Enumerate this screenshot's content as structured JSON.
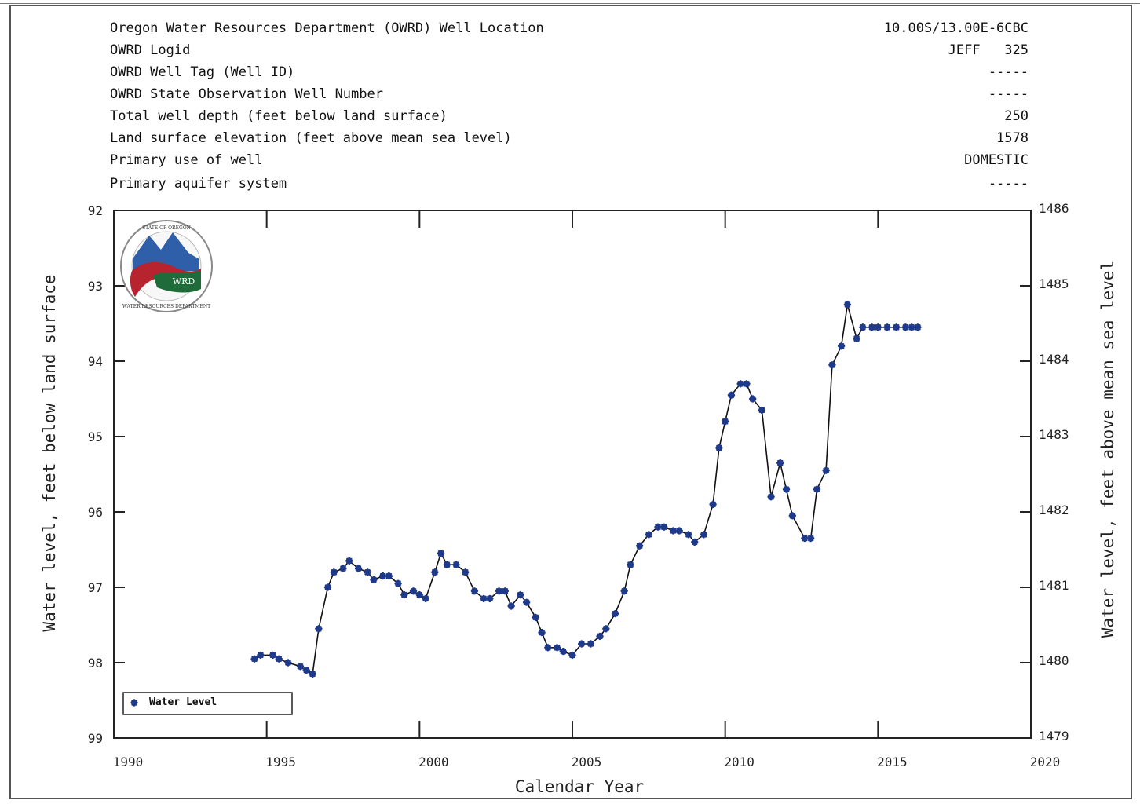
{
  "info_rows": [
    {
      "label": "Oregon Water Resources Department (OWRD) Well Location",
      "value": "10.00S/13.00E-6CBC"
    },
    {
      "label": "OWRD Logid",
      "value": "JEFF   325"
    },
    {
      "label": "OWRD Well Tag (Well ID)",
      "value": "-----"
    },
    {
      "label": "OWRD State Observation Well Number",
      "value": "-----"
    },
    {
      "label": "Total well depth (feet below land surface)",
      "value": "250"
    },
    {
      "label": "Land surface elevation (feet above mean sea level)",
      "value": "1578"
    },
    {
      "label": "Primary use of well",
      "value": "DOMESTIC"
    },
    {
      "label": "Primary aquifer system",
      "value": "-----"
    }
  ],
  "logo": {
    "text_top": "STATE OF OREGON",
    "text_bottom": "WATER RESOURCES DEPARTMENT",
    "abbr": "WRD"
  },
  "colors": {
    "series": "#1f3a8a",
    "line": "#111111",
    "axis": "#222222",
    "logo_blue": "#2f5fa8",
    "logo_red": "#b7232f",
    "logo_green": "#1f6b3a"
  },
  "chart_data": {
    "type": "line",
    "title": "",
    "xlabel": "Calendar Year",
    "ylabel": "Water level, feet below land surface",
    "ylabel_right": "Water level, feet above mean sea level",
    "xlim": [
      1990,
      2020
    ],
    "ylim": [
      99,
      92
    ],
    "ylim_right": [
      1479,
      1486
    ],
    "x_ticks": [
      1990,
      1995,
      2000,
      2005,
      2010,
      2015,
      2020
    ],
    "y_ticks": [
      92,
      93,
      94,
      95,
      96,
      97,
      98,
      99
    ],
    "y_ticks_right": [
      1486,
      1485,
      1484,
      1483,
      1482,
      1481,
      1480,
      1479
    ],
    "legend": {
      "position": "bottom-left",
      "entries": [
        "Water Level"
      ]
    },
    "series": [
      {
        "name": "Water Level",
        "x": [
          1994.6,
          1994.8,
          1995.2,
          1995.4,
          1995.7,
          1996.1,
          1996.3,
          1996.5,
          1996.7,
          1997.0,
          1997.2,
          1997.5,
          1997.7,
          1998.0,
          1998.3,
          1998.5,
          1998.8,
          1999.0,
          1999.3,
          1999.5,
          1999.8,
          2000.0,
          2000.2,
          2000.5,
          2000.7,
          2000.9,
          2001.2,
          2001.5,
          2001.8,
          2002.1,
          2002.3,
          2002.6,
          2002.8,
          2003.0,
          2003.3,
          2003.5,
          2003.8,
          2004.0,
          2004.2,
          2004.5,
          2004.7,
          2005.0,
          2005.3,
          2005.6,
          2005.9,
          2006.1,
          2006.4,
          2006.7,
          2006.9,
          2007.2,
          2007.5,
          2007.8,
          2008.0,
          2008.3,
          2008.5,
          2008.8,
          2009.0,
          2009.3,
          2009.6,
          2009.8,
          2010.0,
          2010.2,
          2010.5,
          2010.7,
          2010.9,
          2011.2,
          2011.5,
          2011.8,
          2012.0,
          2012.2,
          2012.6,
          2012.8,
          2013.0,
          2013.3,
          2013.5,
          2013.8,
          2014.0,
          2014.3,
          2014.5,
          2014.8,
          2015.0,
          2015.3,
          2015.6,
          2015.9,
          2016.1,
          2016.3
        ],
        "values": [
          97.95,
          97.9,
          97.9,
          97.95,
          98.0,
          98.05,
          98.1,
          98.15,
          97.55,
          97.0,
          96.8,
          96.75,
          96.65,
          96.75,
          96.8,
          96.9,
          96.85,
          96.85,
          96.95,
          97.1,
          97.05,
          97.1,
          97.15,
          96.8,
          96.55,
          96.7,
          96.7,
          96.8,
          97.05,
          97.15,
          97.15,
          97.05,
          97.05,
          97.25,
          97.1,
          97.2,
          97.4,
          97.6,
          97.8,
          97.8,
          97.85,
          97.9,
          97.75,
          97.75,
          97.65,
          97.55,
          97.35,
          97.05,
          96.7,
          96.45,
          96.3,
          96.2,
          96.2,
          96.25,
          96.25,
          96.3,
          96.4,
          96.3,
          95.9,
          95.15,
          94.8,
          94.45,
          94.3,
          94.3,
          94.5,
          94.65,
          95.8,
          95.35,
          95.7,
          96.05,
          96.35,
          96.35,
          95.7,
          95.45,
          94.05,
          93.8,
          93.25,
          93.7,
          93.55,
          93.55,
          93.55,
          93.55,
          93.55,
          93.55,
          93.55,
          93.55
        ]
      }
    ]
  }
}
